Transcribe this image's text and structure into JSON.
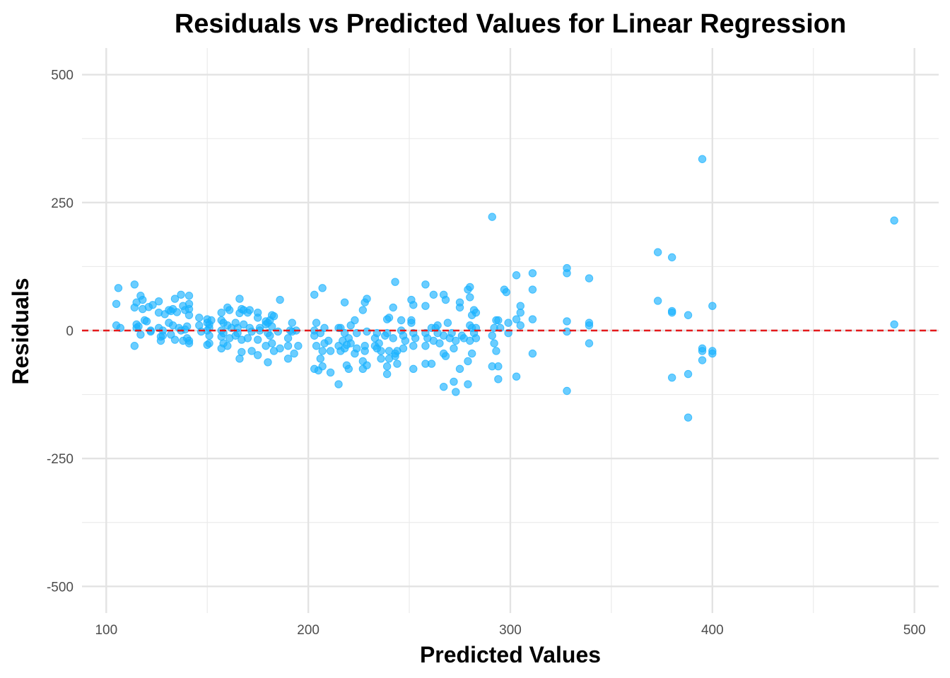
{
  "chart_data": {
    "type": "scatter",
    "title": "Residuals vs Predicted Values for Linear Regression",
    "xlabel": "Predicted Values",
    "ylabel": "Residuals",
    "xlim": [
      88,
      512
    ],
    "ylim": [
      -552,
      552
    ],
    "x_ticks": [
      100,
      200,
      300,
      400,
      500
    ],
    "y_ticks": [
      500,
      250,
      0,
      -250,
      -500
    ],
    "x_tick_labels": [
      "100",
      "200",
      "300",
      "400",
      "500"
    ],
    "y_tick_labels": [
      "500",
      "250",
      "0",
      "-250",
      "-500"
    ],
    "grid": true,
    "reference_line": {
      "y": 0,
      "style": "dashed",
      "color": "#e41a1c"
    },
    "point_color": "#1ab2ff",
    "series": [
      {
        "points": [
          [
            105,
            52
          ],
          [
            105,
            10
          ],
          [
            106,
            83
          ],
          [
            107,
            5
          ],
          [
            114,
            90
          ],
          [
            114,
            45
          ],
          [
            114,
            -30
          ],
          [
            115,
            55
          ],
          [
            115,
            12
          ],
          [
            115,
            5
          ],
          [
            116,
            8
          ],
          [
            117,
            68
          ],
          [
            117,
            -8
          ],
          [
            118,
            60
          ],
          [
            118,
            42
          ],
          [
            119,
            20
          ],
          [
            120,
            18
          ],
          [
            121,
            46
          ],
          [
            122,
            0
          ],
          [
            122,
            -2
          ],
          [
            123,
            50
          ],
          [
            126,
            57
          ],
          [
            126,
            35
          ],
          [
            126,
            5
          ],
          [
            127,
            -12
          ],
          [
            127,
            -20
          ],
          [
            128,
            0
          ],
          [
            128,
            -10
          ],
          [
            129,
            32
          ],
          [
            131,
            40
          ],
          [
            131,
            15
          ],
          [
            132,
            38
          ],
          [
            132,
            -8
          ],
          [
            133,
            42
          ],
          [
            133,
            10
          ],
          [
            134,
            62
          ],
          [
            134,
            -18
          ],
          [
            135,
            36
          ],
          [
            136,
            5
          ],
          [
            137,
            70
          ],
          [
            137,
            0
          ],
          [
            138,
            48
          ],
          [
            138,
            -20
          ],
          [
            139,
            40
          ],
          [
            139,
            2
          ],
          [
            140,
            8
          ],
          [
            140,
            -15
          ],
          [
            141,
            68
          ],
          [
            141,
            52
          ],
          [
            141,
            42
          ],
          [
            141,
            30
          ],
          [
            141,
            -20
          ],
          [
            141,
            -25
          ],
          [
            146,
            25
          ],
          [
            146,
            10
          ],
          [
            147,
            -2
          ],
          [
            150,
            22
          ],
          [
            150,
            15
          ],
          [
            150,
            0
          ],
          [
            150,
            -28
          ],
          [
            151,
            12
          ],
          [
            151,
            5
          ],
          [
            151,
            -10
          ],
          [
            151,
            -25
          ],
          [
            152,
            20
          ],
          [
            157,
            35
          ],
          [
            157,
            20
          ],
          [
            157,
            0
          ],
          [
            157,
            -12
          ],
          [
            157,
            -35
          ],
          [
            158,
            15
          ],
          [
            158,
            -5
          ],
          [
            158,
            -25
          ],
          [
            160,
            45
          ],
          [
            160,
            10
          ],
          [
            160,
            -30
          ],
          [
            161,
            40
          ],
          [
            161,
            -15
          ],
          [
            162,
            5
          ],
          [
            164,
            -10
          ],
          [
            164,
            15
          ],
          [
            165,
            -5
          ],
          [
            165,
            5
          ],
          [
            166,
            62
          ],
          [
            166,
            34
          ],
          [
            166,
            -55
          ],
          [
            167,
            42
          ],
          [
            167,
            -18
          ],
          [
            167,
            -42
          ],
          [
            168,
            40
          ],
          [
            168,
            12
          ],
          [
            170,
            35
          ],
          [
            170,
            -15
          ],
          [
            171,
            40
          ],
          [
            171,
            5
          ],
          [
            172,
            -2
          ],
          [
            172,
            -40
          ],
          [
            175,
            35
          ],
          [
            175,
            25
          ],
          [
            175,
            -18
          ],
          [
            175,
            -48
          ],
          [
            176,
            5
          ],
          [
            176,
            0
          ],
          [
            179,
            18
          ],
          [
            179,
            12
          ],
          [
            179,
            -30
          ],
          [
            180,
            15
          ],
          [
            180,
            -5
          ],
          [
            180,
            -62
          ],
          [
            181,
            20
          ],
          [
            181,
            -10
          ],
          [
            182,
            30
          ],
          [
            182,
            8
          ],
          [
            182,
            -25
          ],
          [
            183,
            28
          ],
          [
            183,
            -40
          ],
          [
            185,
            -2
          ],
          [
            186,
            -35
          ],
          [
            186,
            60
          ],
          [
            190,
            -15
          ],
          [
            190,
            -30
          ],
          [
            190,
            -55
          ],
          [
            191,
            0
          ],
          [
            192,
            15
          ],
          [
            192,
            -2
          ],
          [
            193,
            -45
          ],
          [
            194,
            0
          ],
          [
            195,
            -30
          ],
          [
            203,
            70
          ],
          [
            203,
            0
          ],
          [
            203,
            -10
          ],
          [
            203,
            -75
          ],
          [
            204,
            -30
          ],
          [
            204,
            15
          ],
          [
            205,
            -78
          ],
          [
            206,
            -5
          ],
          [
            206,
            -55
          ],
          [
            207,
            -40
          ],
          [
            207,
            -70
          ],
          [
            207,
            83
          ],
          [
            208,
            -25
          ],
          [
            208,
            5
          ],
          [
            210,
            -20
          ],
          [
            211,
            -40
          ],
          [
            211,
            -82
          ],
          [
            215,
            5
          ],
          [
            215,
            -30
          ],
          [
            215,
            -105
          ],
          [
            216,
            -40
          ],
          [
            216,
            5
          ],
          [
            217,
            -20
          ],
          [
            218,
            55
          ],
          [
            218,
            -5
          ],
          [
            218,
            -35
          ],
          [
            219,
            -68
          ],
          [
            219,
            -28
          ],
          [
            220,
            -75
          ],
          [
            220,
            -15
          ],
          [
            221,
            -25
          ],
          [
            221,
            10
          ],
          [
            223,
            20
          ],
          [
            223,
            -45
          ],
          [
            224,
            -5
          ],
          [
            224,
            -35
          ],
          [
            227,
            -60
          ],
          [
            227,
            -75
          ],
          [
            227,
            40
          ],
          [
            228,
            55
          ],
          [
            228,
            -30
          ],
          [
            228,
            -40
          ],
          [
            229,
            62
          ],
          [
            229,
            -2
          ],
          [
            229,
            -68
          ],
          [
            233,
            -30
          ],
          [
            233,
            -15
          ],
          [
            234,
            -5
          ],
          [
            234,
            -35
          ],
          [
            235,
            -25
          ],
          [
            236,
            -40
          ],
          [
            236,
            -55
          ],
          [
            238,
            -10
          ],
          [
            239,
            -70
          ],
          [
            239,
            -85
          ],
          [
            239,
            22
          ],
          [
            239,
            -5
          ],
          [
            240,
            25
          ],
          [
            240,
            -40
          ],
          [
            240,
            -55
          ],
          [
            242,
            -15
          ],
          [
            242,
            45
          ],
          [
            243,
            95
          ],
          [
            243,
            -45
          ],
          [
            243,
            -50
          ],
          [
            244,
            -65
          ],
          [
            244,
            -40
          ],
          [
            246,
            20
          ],
          [
            246,
            0
          ],
          [
            247,
            -10
          ],
          [
            247,
            -35
          ],
          [
            248,
            -20
          ],
          [
            251,
            60
          ],
          [
            251,
            20
          ],
          [
            251,
            15
          ],
          [
            252,
            50
          ],
          [
            252,
            -30
          ],
          [
            252,
            -5
          ],
          [
            252,
            -75
          ],
          [
            253,
            -15
          ],
          [
            258,
            90
          ],
          [
            258,
            48
          ],
          [
            258,
            -5
          ],
          [
            258,
            -65
          ],
          [
            258,
            -30
          ],
          [
            259,
            -15
          ],
          [
            261,
            -65
          ],
          [
            261,
            5
          ],
          [
            262,
            -20
          ],
          [
            262,
            70
          ],
          [
            263,
            5
          ],
          [
            264,
            10
          ],
          [
            264,
            -5
          ],
          [
            265,
            -25
          ],
          [
            267,
            -110
          ],
          [
            267,
            70
          ],
          [
            267,
            -45
          ],
          [
            267,
            -10
          ],
          [
            268,
            -50
          ],
          [
            268,
            60
          ],
          [
            269,
            15
          ],
          [
            270,
            -15
          ],
          [
            271,
            -5
          ],
          [
            272,
            -100
          ],
          [
            272,
            -35
          ],
          [
            273,
            -120
          ],
          [
            273,
            -20
          ],
          [
            275,
            -75
          ],
          [
            275,
            55
          ],
          [
            275,
            45
          ],
          [
            276,
            -10
          ],
          [
            277,
            -15
          ],
          [
            279,
            -105
          ],
          [
            279,
            80
          ],
          [
            279,
            -60
          ],
          [
            280,
            85
          ],
          [
            280,
            65
          ],
          [
            280,
            10
          ],
          [
            280,
            -20
          ],
          [
            281,
            30
          ],
          [
            281,
            5
          ],
          [
            281,
            -45
          ],
          [
            282,
            -5
          ],
          [
            282,
            40
          ],
          [
            283,
            35
          ],
          [
            283,
            -15
          ],
          [
            283,
            5
          ],
          [
            291,
            222
          ],
          [
            291,
            -70
          ],
          [
            291,
            -10
          ],
          [
            292,
            -25
          ],
          [
            292,
            5
          ],
          [
            293,
            -40
          ],
          [
            293,
            20
          ],
          [
            294,
            20
          ],
          [
            294,
            -95
          ],
          [
            294,
            -70
          ],
          [
            295,
            5
          ],
          [
            297,
            80
          ],
          [
            298,
            75
          ],
          [
            299,
            -5
          ],
          [
            299,
            15
          ],
          [
            303,
            108
          ],
          [
            303,
            22
          ],
          [
            303,
            -90
          ],
          [
            305,
            48
          ],
          [
            305,
            10
          ],
          [
            305,
            35
          ],
          [
            311,
            112
          ],
          [
            311,
            80
          ],
          [
            311,
            22
          ],
          [
            311,
            -45
          ],
          [
            328,
            122
          ],
          [
            328,
            112
          ],
          [
            328,
            18
          ],
          [
            328,
            -2
          ],
          [
            328,
            -118
          ],
          [
            339,
            102
          ],
          [
            339,
            15
          ],
          [
            339,
            10
          ],
          [
            339,
            -25
          ],
          [
            373,
            153
          ],
          [
            373,
            58
          ],
          [
            380,
            143
          ],
          [
            380,
            38
          ],
          [
            380,
            35
          ],
          [
            380,
            -92
          ],
          [
            388,
            30
          ],
          [
            388,
            -85
          ],
          [
            388,
            -170
          ],
          [
            395,
            335
          ],
          [
            395,
            -35
          ],
          [
            395,
            -40
          ],
          [
            395,
            -58
          ],
          [
            400,
            48
          ],
          [
            400,
            -40
          ],
          [
            400,
            -45
          ],
          [
            490,
            215
          ],
          [
            490,
            12
          ]
        ]
      }
    ]
  }
}
